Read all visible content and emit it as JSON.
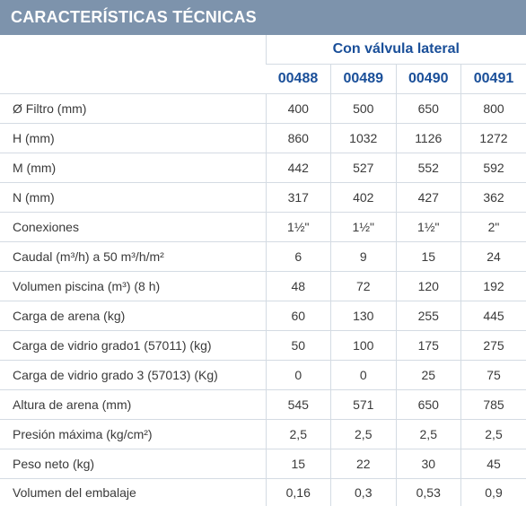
{
  "title": "CARACTERÍSTICAS TÉCNICAS",
  "group_header": "Con válvula lateral",
  "models": [
    "00488",
    "00489",
    "00490",
    "00491"
  ],
  "rows": [
    {
      "label": "Ø Filtro (mm)",
      "values": [
        "400",
        "500",
        "650",
        "800"
      ]
    },
    {
      "label": "H (mm)",
      "values": [
        "860",
        "1032",
        "1126",
        "1272"
      ]
    },
    {
      "label": "M (mm)",
      "values": [
        "442",
        "527",
        "552",
        "592"
      ]
    },
    {
      "label": "N (mm)",
      "values": [
        "317",
        "402",
        "427",
        "362"
      ]
    },
    {
      "label": "Conexiones",
      "values": [
        "1½\"",
        "1½\"",
        "1½\"",
        "2\""
      ]
    },
    {
      "label": "Caudal (m³/h) a 50 m³/h/m²",
      "values": [
        "6",
        "9",
        "15",
        "24"
      ]
    },
    {
      "label": "Volumen piscina (m³) (8 h)",
      "values": [
        "48",
        "72",
        "120",
        "192"
      ]
    },
    {
      "label": "Carga de arena (kg)",
      "values": [
        "60",
        "130",
        "255",
        "445"
      ]
    },
    {
      "label": "Carga de vidrio grado1 (57011) (kg)",
      "values": [
        "50",
        "100",
        "175",
        "275"
      ]
    },
    {
      "label": "Carga de vidrio grado 3 (57013) (Kg)",
      "values": [
        "0",
        "0",
        "25",
        "75"
      ]
    },
    {
      "label": "Altura de arena (mm)",
      "values": [
        "545",
        "571",
        "650",
        "785"
      ]
    },
    {
      "label": "Presión máxima (kg/cm²)",
      "values": [
        "2,5",
        "2,5",
        "2,5",
        "2,5"
      ]
    },
    {
      "label": "Peso neto (kg)",
      "values": [
        "15",
        "22",
        "30",
        "45"
      ]
    },
    {
      "label": "Volumen del embalaje",
      "values": [
        "0,16",
        "0,3",
        "0,53",
        "0,9"
      ]
    }
  ]
}
